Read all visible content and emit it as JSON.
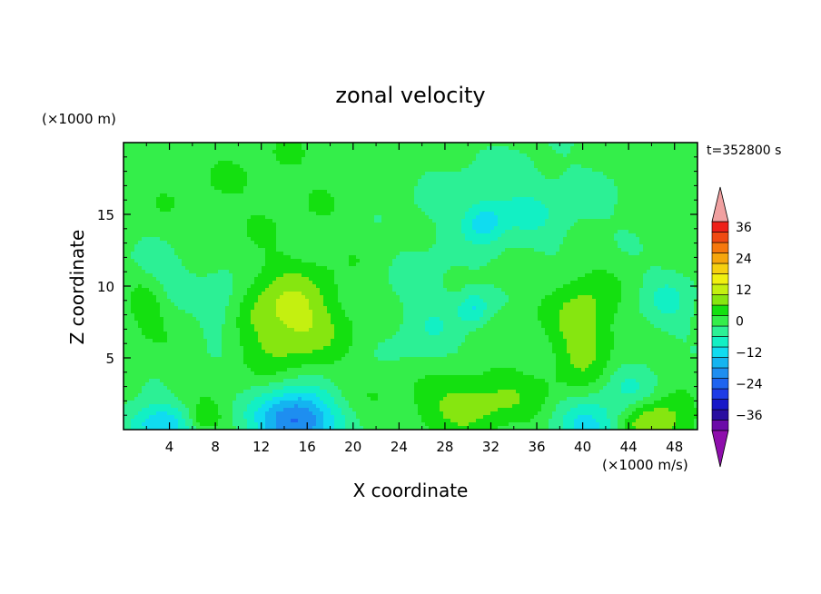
{
  "chart_data": {
    "type": "heatmap",
    "title": "zonal velocity",
    "xlabel": "X coordinate",
    "ylabel": "Z coordinate",
    "x_unit": "(×1000 m/s)",
    "y_unit": "(×1000 m)",
    "time_label": "t=352800 s",
    "xlim": [
      0,
      50
    ],
    "ylim": [
      0,
      20
    ],
    "x_ticks": [
      "4",
      "8",
      "12",
      "16",
      "20",
      "24",
      "28",
      "32",
      "36",
      "40",
      "44",
      "48"
    ],
    "y_ticks": [
      "5",
      "10",
      "15"
    ],
    "colorbar": {
      "tick_labels": [
        "36",
        "24",
        "12",
        "0",
        "−12",
        "−24",
        "−36"
      ],
      "levels": [
        -40,
        -36,
        -32,
        -28,
        -24,
        -20,
        -16,
        -12,
        -8,
        -4,
        0,
        4,
        8,
        12,
        16,
        20,
        24,
        28,
        32,
        36,
        40
      ],
      "colors": [
        "#6b0aa8",
        "#2a0fa0",
        "#1818c8",
        "#1e3ce6",
        "#1e64f0",
        "#1e8ef0",
        "#14b4f0",
        "#10dcf0",
        "#12f0c4",
        "#2cf095",
        "#34ee4a",
        "#14e010",
        "#86e610",
        "#c4f010",
        "#f0f010",
        "#f6d010",
        "#f6a60c",
        "#f6780c",
        "#f04a12",
        "#ee2018"
      ],
      "under_color": "#8e0eac",
      "over_color": "#f0a0a0"
    },
    "background_value": 2,
    "features": [
      {
        "x": 14.5,
        "z": 7.8,
        "sx": 4.2,
        "sz": 3.2,
        "value": 12
      },
      {
        "x": 40.0,
        "z": 7.2,
        "sx": 2.6,
        "sz": 3.6,
        "value": 9
      },
      {
        "x": 15.0,
        "z": 0.6,
        "sx": 3.5,
        "sz": 2.2,
        "value": -24
      },
      {
        "x": 3.0,
        "z": 0.3,
        "sx": 3.0,
        "sz": 1.6,
        "value": -14
      },
      {
        "x": 40.5,
        "z": 0.2,
        "sx": 3.0,
        "sz": 1.8,
        "value": -12
      },
      {
        "x": 30.0,
        "z": 2.0,
        "sx": 6.0,
        "sz": 2.2,
        "value": 8
      },
      {
        "x": 46.0,
        "z": 0.5,
        "sx": 2.8,
        "sz": 1.5,
        "value": 12
      },
      {
        "x": 7.0,
        "z": 0.8,
        "sx": 1.5,
        "sz": 1.0,
        "value": 7
      },
      {
        "x": 2.0,
        "z": 8.5,
        "sx": 1.4,
        "sz": 1.8,
        "value": 6
      },
      {
        "x": 8.5,
        "z": 8.5,
        "sx": 2.0,
        "sz": 2.5,
        "value": -6
      },
      {
        "x": 34.0,
        "z": 15.5,
        "sx": 8.0,
        "sz": 3.5,
        "value": -6
      },
      {
        "x": 31.5,
        "z": 14.5,
        "sx": 1.5,
        "sz": 1.2,
        "value": -9
      },
      {
        "x": 26.5,
        "z": 7.5,
        "sx": 3.5,
        "sz": 4.5,
        "value": -5
      },
      {
        "x": 30.5,
        "z": 8.5,
        "sx": 1.3,
        "sz": 1.2,
        "value": -9
      },
      {
        "x": 47.5,
        "z": 9.0,
        "sx": 2.5,
        "sz": 2.5,
        "value": -6
      },
      {
        "x": 44.0,
        "z": 2.5,
        "sx": 2.5,
        "sz": 2.0,
        "value": -6
      },
      {
        "x": 3.5,
        "z": 11.0,
        "sx": 3.5,
        "sz": 2.0,
        "value": -4
      }
    ]
  }
}
